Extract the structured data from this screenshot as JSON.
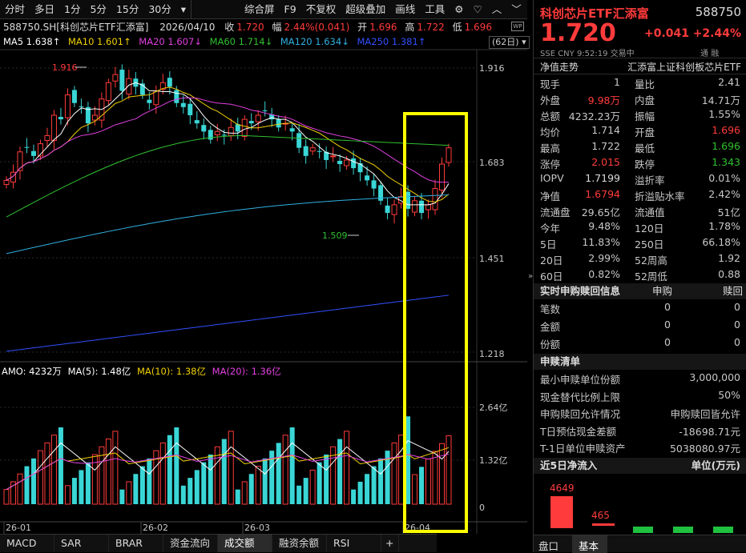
{
  "toolbar": {
    "items": [
      "分时",
      "多日",
      "1分",
      "5分",
      "15分",
      "30分",
      "综合屏",
      "F9",
      "不复权",
      "超级叠加",
      "画线",
      "工具"
    ],
    "icons": [
      "gear-icon",
      "heart-icon",
      "chevron-up-icon",
      "chevron-down-icon"
    ]
  },
  "info": {
    "code_name": "588750.SH[科创芯片ETF汇添富]",
    "date": "2026/04/10",
    "close_label": "收",
    "close": "1.720",
    "amp_label": "幅",
    "amp": "2.44%(0.041)",
    "open_label": "开",
    "open": "1.696",
    "high_label": "高",
    "high": "1.722",
    "low_label": "低",
    "low": "1.696"
  },
  "ma": {
    "ma5": "MA5 1.638↑",
    "ma10": "MA10 1.601↑",
    "ma20": "MA20 1.607↓",
    "ma60": "MA60 1.714↓",
    "ma120": "MA120 1.634↓",
    "ma250": "MA250 1.381↑",
    "range": "(62日)"
  },
  "price_axis": [
    "1.916",
    "1.683",
    "1.451",
    "1.218"
  ],
  "annotations": {
    "high": "1.916",
    "low": "1.509"
  },
  "amo": {
    "label": "AMO: 4232万",
    "ma5": "MA(5): 1.48亿",
    "ma10": "MA(10): 1.38亿",
    "ma20": "MA(20): 1.36亿"
  },
  "vol_axis": [
    "2.64亿",
    "1.32亿",
    "0"
  ],
  "date_axis": [
    "26-01",
    "26-02",
    "26-03",
    "26-04"
  ],
  "bottom_tabs": [
    "MACD",
    "SAR",
    "BRAR",
    "资金流向",
    "成交额",
    "融资余额",
    "RSI"
  ],
  "right": {
    "title": "科创芯片ETF汇添富",
    "code": "588750",
    "price": "1.720",
    "change": "+0.041",
    "pct": "+2.44%",
    "sub": "SSE  CNY  9:52:19  交易中",
    "nav_title": "净值走势",
    "fund_name": "汇添富上证科创板芯片ETF",
    "rows": [
      [
        "现手",
        "1",
        "量比",
        "2.41"
      ],
      [
        "外盘",
        "9.98万",
        "内盘",
        "14.71万"
      ],
      [
        "总额",
        "4232.23万",
        "振幅",
        "1.55%"
      ],
      [
        "均价",
        "1.714",
        "开盘",
        "1.696"
      ],
      [
        "最高",
        "1.722",
        "最低",
        "1.696"
      ],
      [
        "涨停",
        "2.015",
        "跌停",
        "1.343"
      ],
      [
        "IOPV",
        "1.7199",
        "溢折率",
        "0.01%"
      ],
      [
        "净值",
        "1.6794",
        "折溢贴水率",
        "2.42%"
      ],
      [
        "流通盘",
        "29.65亿",
        "流通值",
        "51亿"
      ],
      [
        "今年",
        "9.48%",
        "120日",
        "1.78%"
      ],
      [
        "5日",
        "11.83%",
        "250日",
        "66.18%"
      ],
      [
        "20日",
        "2.99%",
        "52周高",
        "1.92"
      ],
      [
        "60日",
        "0.82%",
        "52周低",
        "0.88"
      ]
    ],
    "sg_title": "实时申购赎回信息",
    "sg_col1": "申购",
    "sg_col2": "赎回",
    "sg_rows": [
      [
        "笔数",
        "0",
        "0"
      ],
      [
        "金额",
        "0",
        "0"
      ],
      [
        "份额",
        "0",
        "0"
      ]
    ],
    "list_title": "申赎清单",
    "list_rows": [
      [
        "最小申赎单位份额",
        "3,000,000"
      ],
      [
        "现金替代比例上限",
        "50%"
      ],
      [
        "申购赎回允许情况",
        "申购赎回皆允许"
      ],
      [
        "T日预估现金差额",
        "-18698.71元"
      ],
      [
        "T-1日单位申赎资产",
        "5038080.97元"
      ]
    ],
    "flow_title": "近5日净流入",
    "flow_unit": "单位(万元)",
    "flow_values": [
      "4649",
      "465"
    ],
    "tabs": [
      "盘口",
      "基本"
    ]
  },
  "colors": {
    "up": "#ff3b3b",
    "down": "#3ad6d6",
    "ma5": "#ffffff",
    "ma10": "#f0d000",
    "ma20": "#e040e0",
    "ma60": "#30c030",
    "ma120": "#30b0e0",
    "ma250": "#3050ff",
    "highlight": "#ffff00"
  }
}
